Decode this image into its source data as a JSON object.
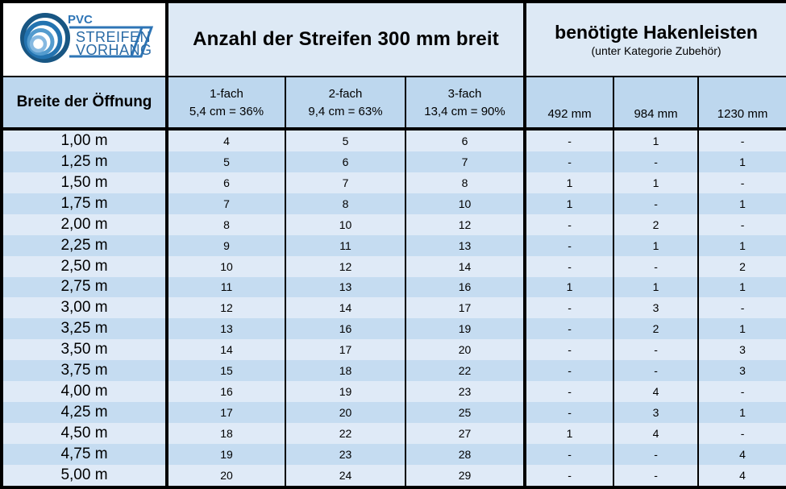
{
  "logo": {
    "brand_top": "PVC",
    "brand_line1": "STREIFEN",
    "brand_line2": "VORHANG"
  },
  "header": {
    "left_title": "Anzahl der Streifen 300 mm breit",
    "right_title": "benötigte Hakenleisten",
    "right_subtitle": "(unter Kategorie Zubehör)"
  },
  "columns": {
    "width_label": "Breite der Öffnung",
    "strips": [
      {
        "line1": "1-fach",
        "line2": "5,4 cm = 36%"
      },
      {
        "line1": "2-fach",
        "line2": "9,4 cm = 63%"
      },
      {
        "line1": "3-fach",
        "line2": "13,4 cm = 90%"
      }
    ],
    "rails": [
      "492 mm",
      "984 mm",
      "1230 mm"
    ]
  },
  "colors": {
    "header_bg": "#dde9f5",
    "subheader_bg": "#bdd7ee",
    "row_light": "#dfeaf7",
    "row_dark": "#c5dcf1",
    "border": "#000000",
    "logo_blue": "#2e75b6",
    "logo_dark_ring": "#185683",
    "logo_mid_ring": "#2373b0",
    "logo_light_ring": "#539bce",
    "logo_pale_ring": "#86b9e1"
  },
  "chart_data": {
    "type": "table",
    "title": "Anzahl der Streifen 300 mm breit / benötigte Hakenleisten (unter Kategorie Zubehör)",
    "columns": [
      "Breite der Öffnung",
      "1-fach 5,4 cm = 36%",
      "2-fach 9,4 cm = 63%",
      "3-fach 13,4 cm = 90%",
      "492 mm",
      "984 mm",
      "1230 mm"
    ],
    "rows": [
      [
        "1,00 m",
        "4",
        "5",
        "6",
        "-",
        "1",
        "-"
      ],
      [
        "1,25 m",
        "5",
        "6",
        "7",
        "-",
        "-",
        "1"
      ],
      [
        "1,50 m",
        "6",
        "7",
        "8",
        "1",
        "1",
        "-"
      ],
      [
        "1,75 m",
        "7",
        "8",
        "10",
        "1",
        "-",
        "1"
      ],
      [
        "2,00 m",
        "8",
        "10",
        "12",
        "-",
        "2",
        "-"
      ],
      [
        "2,25 m",
        "9",
        "11",
        "13",
        "-",
        "1",
        "1"
      ],
      [
        "2,50 m",
        "10",
        "12",
        "14",
        "-",
        "-",
        "2"
      ],
      [
        "2,75 m",
        "11",
        "13",
        "16",
        "1",
        "1",
        "1"
      ],
      [
        "3,00 m",
        "12",
        "14",
        "17",
        "-",
        "3",
        "-"
      ],
      [
        "3,25 m",
        "13",
        "16",
        "19",
        "-",
        "2",
        "1"
      ],
      [
        "3,50 m",
        "14",
        "17",
        "20",
        "-",
        "-",
        "3"
      ],
      [
        "3,75 m",
        "15",
        "18",
        "22",
        "-",
        "-",
        "3"
      ],
      [
        "4,00 m",
        "16",
        "19",
        "23",
        "-",
        "4",
        "-"
      ],
      [
        "4,25 m",
        "17",
        "20",
        "25",
        "-",
        "3",
        "1"
      ],
      [
        "4,50 m",
        "18",
        "22",
        "27",
        "1",
        "4",
        "-"
      ],
      [
        "4,75 m",
        "19",
        "23",
        "28",
        "-",
        "-",
        "4"
      ],
      [
        "5,00 m",
        "20",
        "24",
        "29",
        "-",
        "-",
        "4"
      ]
    ]
  }
}
